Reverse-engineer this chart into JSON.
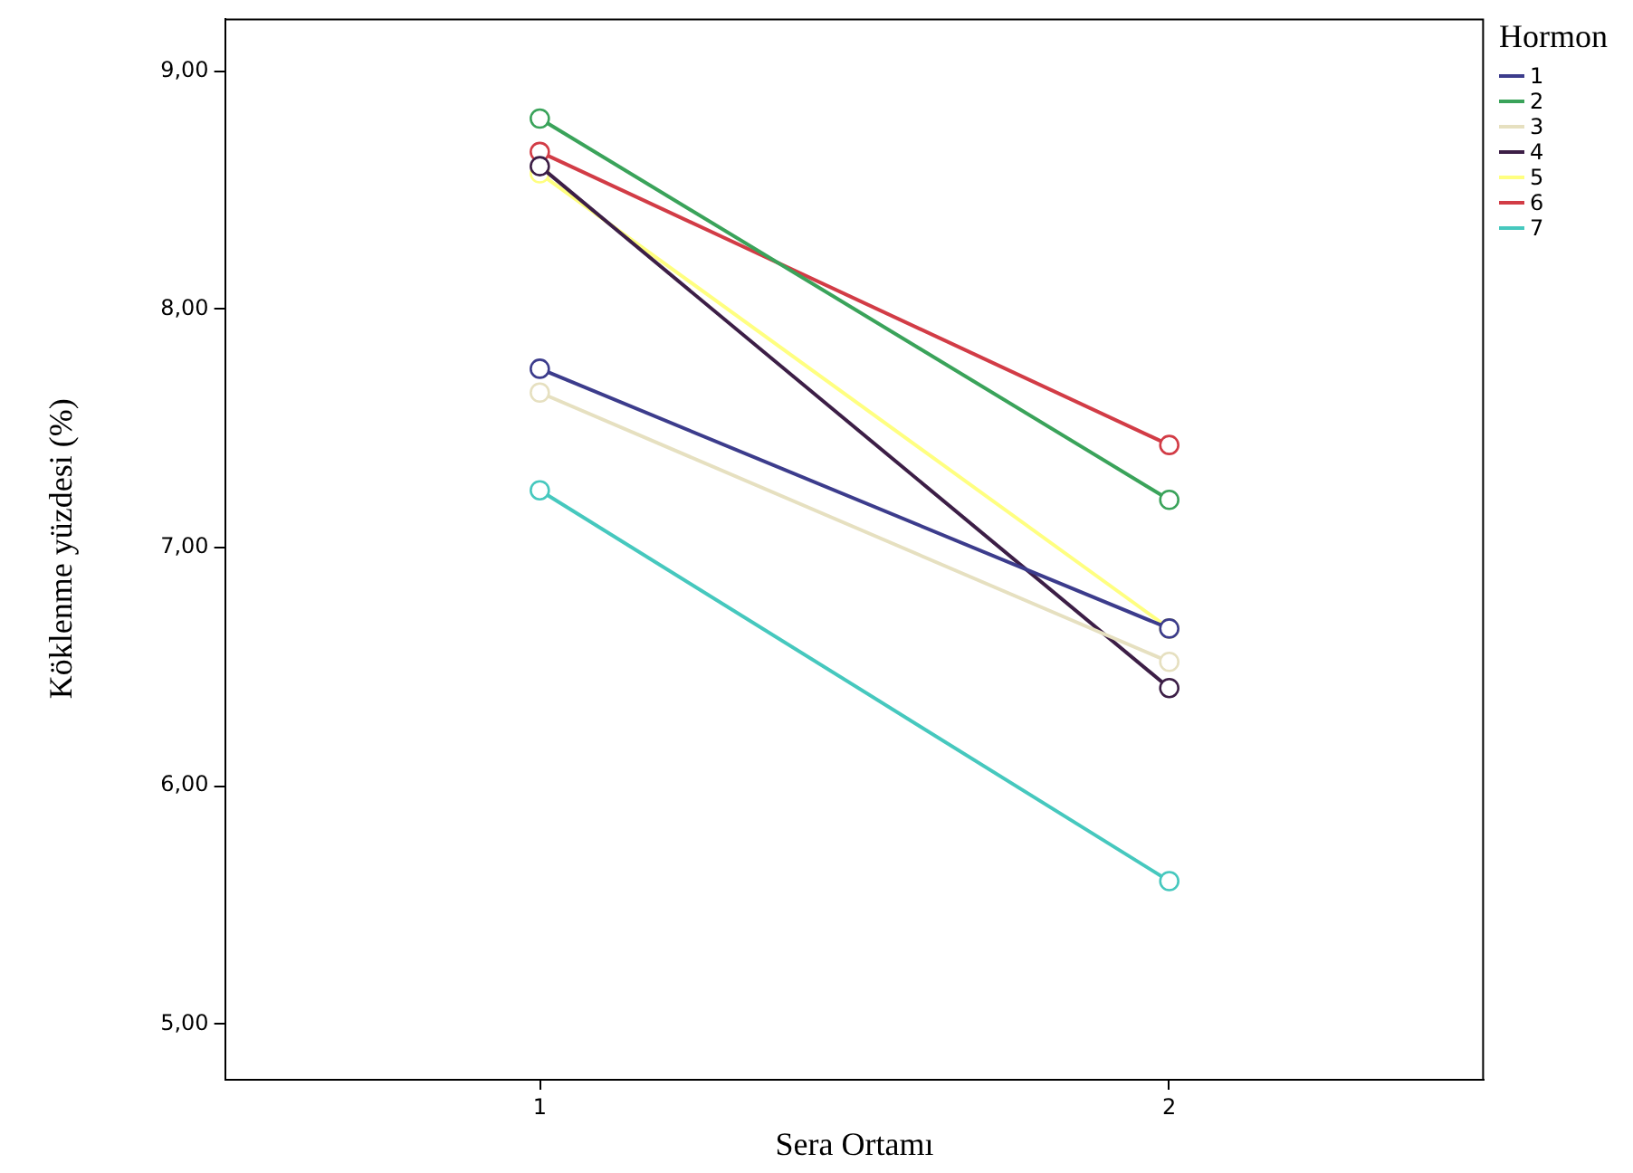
{
  "chart_data": {
    "type": "line",
    "xlabel": "Sera Ortamı",
    "ylabel": "Köklenme yüzdesi (%)",
    "legend_title": "Hormon",
    "categories": [
      "1",
      "2"
    ],
    "series": [
      {
        "name": "1",
        "color": "#3c3c8c",
        "values": [
          7.75,
          6.66
        ]
      },
      {
        "name": "2",
        "color": "#3aa35a",
        "values": [
          8.8,
          7.2
        ]
      },
      {
        "name": "3",
        "color": "#e6e0c0",
        "values": [
          7.65,
          6.52
        ]
      },
      {
        "name": "4",
        "color": "#3c1e46",
        "values": [
          8.6,
          6.41
        ]
      },
      {
        "name": "5",
        "color": "#ffff80",
        "values": [
          8.57,
          6.66
        ]
      },
      {
        "name": "6",
        "color": "#d23c46",
        "values": [
          8.66,
          7.43
        ]
      },
      {
        "name": "7",
        "color": "#46c8be",
        "values": [
          7.24,
          5.6
        ]
      }
    ],
    "ylim": [
      4.77,
      9.22
    ],
    "yticks": [
      {
        "value": 5,
        "label": "5,00"
      },
      {
        "value": 6,
        "label": "6,00"
      },
      {
        "value": 7,
        "label": "7,00"
      },
      {
        "value": 8,
        "label": "8,00"
      },
      {
        "value": 9,
        "label": "9,00"
      }
    ],
    "grid": false,
    "legend": "right",
    "marker": "circle",
    "line_style": "solid"
  }
}
